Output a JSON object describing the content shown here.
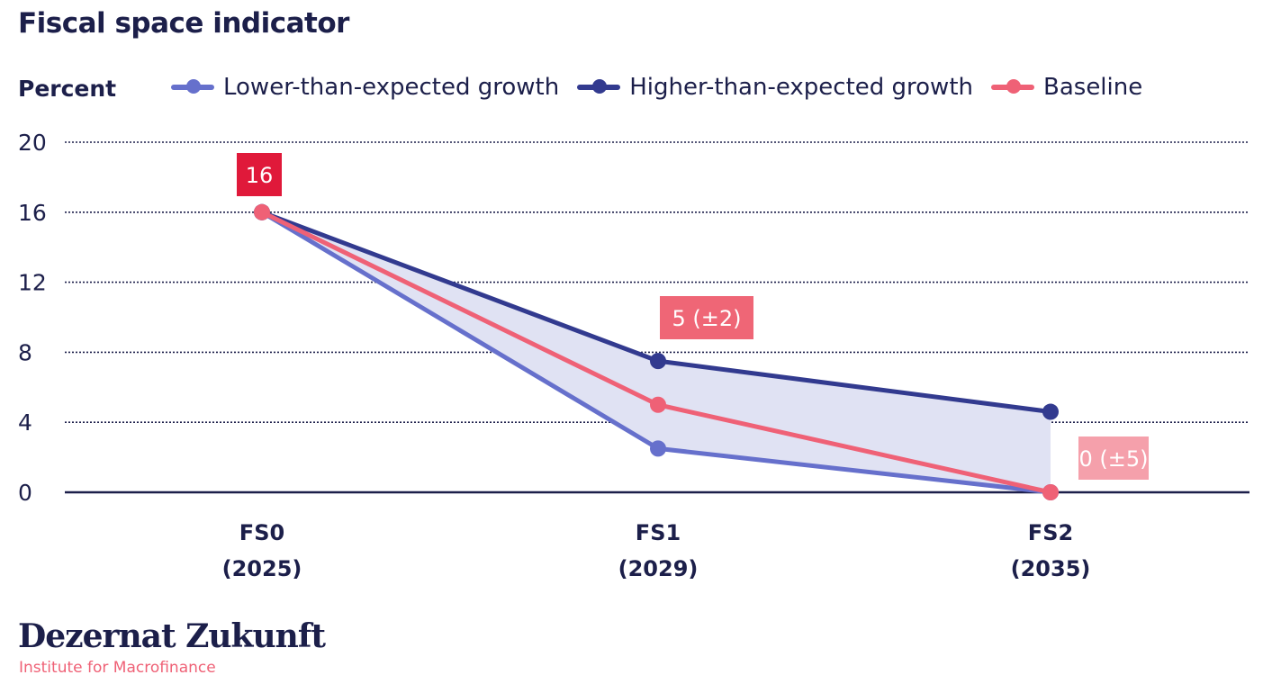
{
  "chart_data": {
    "type": "line",
    "title": "Fiscal space indicator",
    "ylabel": "Percent",
    "categories": [
      [
        "FS0",
        "(2025)"
      ],
      [
        "FS1",
        "(2029)"
      ],
      [
        "FS2",
        "(2035)"
      ]
    ],
    "ylim": [
      0,
      20
    ],
    "yticks": [
      0,
      4,
      8,
      12,
      16,
      20
    ],
    "grid": true,
    "legend": "top",
    "series": [
      {
        "name": "Lower-than-expected growth",
        "values": [
          16,
          2.5,
          0
        ],
        "color": "#6670cc"
      },
      {
        "name": "Higher-than-expected growth",
        "values": [
          16,
          7.5,
          4.6
        ],
        "color": "#323a8f"
      },
      {
        "name": "Baseline",
        "values": [
          16,
          5,
          0
        ],
        "color": "#ef6176"
      }
    ],
    "band_fill": "#e0e2f3",
    "annotations": [
      {
        "text": "16",
        "category": 0,
        "color": "#e0193a"
      },
      {
        "text": "5 (±2)",
        "category": 1,
        "color": "#ef6676"
      },
      {
        "text": "0 (±5)",
        "category": 2,
        "color": "#f5a0ab"
      }
    ]
  },
  "branding": {
    "name": "Dezernat Zukunft",
    "subtitle": "Institute for Macrofinance"
  }
}
